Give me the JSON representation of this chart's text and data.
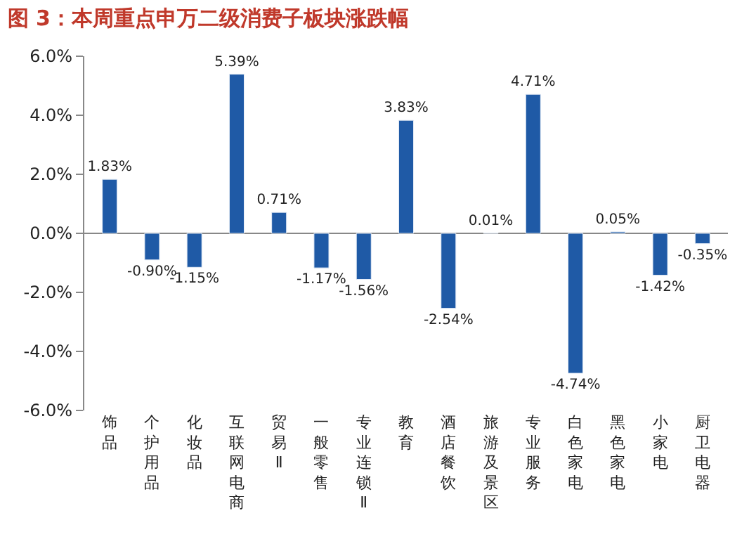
{
  "chart_data": {
    "type": "bar",
    "title": "图 3：本周重点申万二级消费子板块涨跌幅",
    "categories": [
      "饰品",
      "个护用品",
      "化妆品",
      "互联网电商",
      "贸易Ⅱ",
      "一般零售",
      "专业连锁Ⅱ",
      "教育",
      "酒店餐饮",
      "旅游及景区",
      "专业服务",
      "白色家电",
      "黑色家电",
      "小家电",
      "厨卫电器"
    ],
    "values": [
      1.83,
      -0.9,
      -1.15,
      5.39,
      0.71,
      -1.17,
      -1.56,
      3.83,
      -2.54,
      0.01,
      4.71,
      -4.74,
      0.05,
      -1.42,
      -0.35
    ],
    "value_labels": [
      "1.83%",
      "-0.90%",
      "-1.15%",
      "5.39%",
      "0.71%",
      "-1.17%",
      "-1.56%",
      "3.83%",
      "-2.54%",
      "0.01%",
      "4.71%",
      "-4.74%",
      "0.05%",
      "-1.42%",
      "-0.35%"
    ],
    "color": "#1f5aa6",
    "ylim": [
      -6,
      6
    ],
    "yticks": [
      {
        "value": -6,
        "label": "-6.0%"
      },
      {
        "value": -4,
        "label": "-4.0%"
      },
      {
        "value": -2,
        "label": "-2.0%"
      },
      {
        "value": 0,
        "label": "0.0%"
      },
      {
        "value": 2,
        "label": "2.0%"
      },
      {
        "value": 4,
        "label": "4.0%"
      },
      {
        "value": 6,
        "label": "6.0%"
      }
    ],
    "legend": false
  }
}
